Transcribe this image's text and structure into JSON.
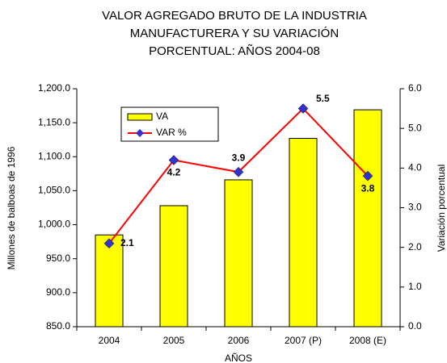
{
  "chart_data": {
    "type": "bar-line",
    "title": [
      "VALOR AGREGADO BRUTO DE LA INDUSTRIA",
      "MANUFACTURERA Y SU VARIACIÓN",
      "PORCENTUAL: AÑOS 2004-08"
    ],
    "x_label": "AÑOS",
    "y_label": "Millones de balboas de 1996",
    "y2_label": "Variación porcentual",
    "categories": [
      "2004",
      "2005",
      "2006",
      "2007 (P)",
      "2008 (E)"
    ],
    "series": [
      {
        "name": "VA",
        "type": "bar",
        "color": "#ffff00",
        "values": [
          985,
          1028,
          1066,
          1127,
          1169
        ]
      },
      {
        "name": "VAR %",
        "type": "line",
        "axis": "y2",
        "color": "#ff0000",
        "marker_color": "#3333cc",
        "values": [
          2.1,
          4.2,
          3.9,
          5.5,
          3.8
        ]
      }
    ],
    "ylim": [
      850,
      1200
    ],
    "yticks": [
      {
        "value": 850,
        "label": "850.0"
      },
      {
        "value": 900,
        "label": "900.0"
      },
      {
        "value": 950,
        "label": "950.0"
      },
      {
        "value": 1000,
        "label": "1,000.0"
      },
      {
        "value": 1050,
        "label": "1,050.0"
      },
      {
        "value": 1100,
        "label": "1,100.0"
      },
      {
        "value": 1150,
        "label": "1,150.0"
      },
      {
        "value": 1200,
        "label": "1,200.0"
      }
    ],
    "y2lim": [
      0,
      6
    ],
    "y2ticks": [
      {
        "value": 0,
        "label": "0.0"
      },
      {
        "value": 1,
        "label": "1.0"
      },
      {
        "value": 2,
        "label": "2.0"
      },
      {
        "value": 3,
        "label": "3.0"
      },
      {
        "value": 4,
        "label": "4.0"
      },
      {
        "value": 5,
        "label": "5.0"
      },
      {
        "value": 6,
        "label": "6.0"
      }
    ],
    "legend": "upper left"
  }
}
